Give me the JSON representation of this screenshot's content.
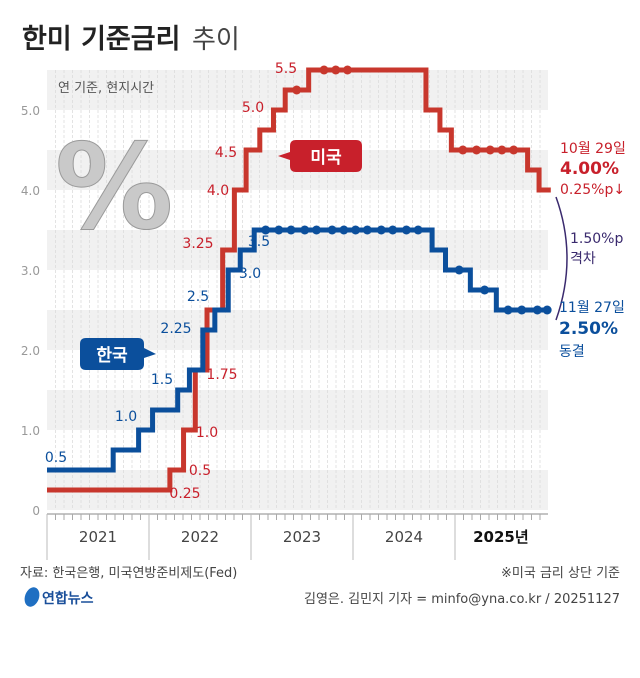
{
  "title": {
    "bold": "한미 기준금리",
    "light": "추이"
  },
  "note_unit": "연 기준, 현지시간",
  "colors": {
    "us": "#c8372d",
    "us_text": "#c8202b",
    "kr": "#0b4f9c",
    "gap": "#3a2a6e",
    "band": "#f1f1f1",
    "axis_text": "#999999"
  },
  "chart_data": {
    "type": "line",
    "step": true,
    "title": "한미 기준금리 추이",
    "ylim": [
      0,
      5.5
    ],
    "yticks": [
      "0",
      "1.0",
      "2.0",
      "3.0",
      "4.0",
      "5.0"
    ],
    "xlim": [
      "2021-01-01",
      "2025-12-15"
    ],
    "xticks": [
      "2021",
      "2022",
      "2023",
      "2024",
      "2025년"
    ],
    "grid": true,
    "series": [
      {
        "name": "미국",
        "color": "#c8372d",
        "steps": [
          [
            "2021-01-01",
            0.25
          ],
          [
            "2022-03-17",
            0.5
          ],
          [
            "2022-05-05",
            1.0
          ],
          [
            "2022-06-16",
            1.75
          ],
          [
            "2022-07-28",
            2.5
          ],
          [
            "2022-09-22",
            3.25
          ],
          [
            "2022-11-03",
            4.0
          ],
          [
            "2022-12-15",
            4.5
          ],
          [
            "2023-02-02",
            4.75
          ],
          [
            "2023-03-23",
            5.0
          ],
          [
            "2023-05-04",
            5.25
          ],
          [
            "2023-07-27",
            5.5
          ],
          [
            "2024-09-19",
            5.0
          ],
          [
            "2024-11-08",
            4.75
          ],
          [
            "2024-12-19",
            4.5
          ],
          [
            "2025-09-18",
            4.25
          ],
          [
            "2025-10-29",
            4.0
          ]
        ],
        "holds": [
          "2023-06-14",
          "2023-09-20",
          "2023-11-01",
          "2023-12-13",
          "2025-01-29",
          "2025-03-19",
          "2025-05-07",
          "2025-06-18",
          "2025-07-30"
        ],
        "labels": [
          "0.25",
          "0.5",
          "1.0",
          "1.75",
          "3.25",
          "4.0",
          "4.5",
          "5.0",
          "5.5"
        ]
      },
      {
        "name": "한국",
        "color": "#0b4f9c",
        "steps": [
          [
            "2021-01-01",
            0.5
          ],
          [
            "2021-08-26",
            0.75
          ],
          [
            "2021-11-25",
            1.0
          ],
          [
            "2022-01-14",
            1.25
          ],
          [
            "2022-04-14",
            1.5
          ],
          [
            "2022-05-26",
            1.75
          ],
          [
            "2022-07-13",
            2.25
          ],
          [
            "2022-08-25",
            2.5
          ],
          [
            "2022-10-12",
            3.0
          ],
          [
            "2022-11-24",
            3.25
          ],
          [
            "2023-01-13",
            3.5
          ],
          [
            "2024-10-11",
            3.25
          ],
          [
            "2024-11-28",
            3.0
          ],
          [
            "2025-02-25",
            2.75
          ],
          [
            "2025-05-29",
            2.5
          ]
        ],
        "holds": [
          "2023-02-23",
          "2023-04-11",
          "2023-05-25",
          "2023-07-13",
          "2023-08-24",
          "2023-10-19",
          "2023-11-30",
          "2024-01-11",
          "2024-02-22",
          "2024-04-12",
          "2024-05-23",
          "2024-07-11",
          "2024-08-22",
          "2025-01-16",
          "2025-04-17",
          "2025-07-10",
          "2025-08-28",
          "2025-10-23",
          "2025-11-27"
        ],
        "labels": [
          "0.5",
          "1.0",
          "1.5",
          "2.25",
          "2.5",
          "3.0",
          "3.5"
        ]
      }
    ],
    "annotations": {
      "us": {
        "date": "10월 29일",
        "rate": "4.00%",
        "change": "0.25%p↓"
      },
      "kr": {
        "date": "11월 27일",
        "rate": "2.50%",
        "change": "동결"
      },
      "gap": {
        "value": "1.50%p",
        "label": "격차"
      }
    }
  },
  "tags": {
    "us": "미국",
    "kr": "한국"
  },
  "footer": {
    "source": "자료: 한국은행, 미국연방준비제도(Fed)",
    "note": "※미국 금리 상단 기준",
    "logo": "연합뉴스",
    "credit": "김영은. 김민지 기자 = minfo@yna.co.kr / 20251127"
  }
}
